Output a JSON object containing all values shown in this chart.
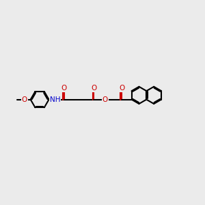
{
  "background_color": "#ebebeb",
  "bond_color": "#000000",
  "oxygen_color": "#cc0000",
  "nitrogen_color": "#0000cc",
  "line_width": 1.5,
  "figsize": [
    3.0,
    3.0
  ],
  "dpi": 100,
  "xlim": [
    0,
    10
  ],
  "ylim": [
    0,
    10
  ]
}
